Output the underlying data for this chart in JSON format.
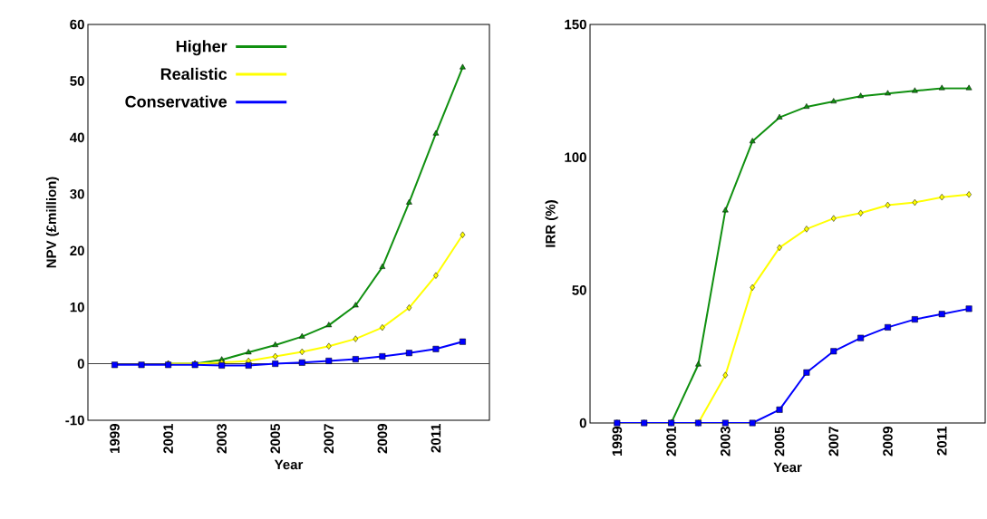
{
  "chart_data": [
    {
      "type": "line",
      "xlabel": "Year",
      "ylabel": "NPV (£million)",
      "x": [
        1999,
        2000,
        2001,
        2002,
        2003,
        2004,
        2005,
        2006,
        2007,
        2008,
        2009,
        2010,
        2011,
        2012
      ],
      "xlim": [
        1998,
        2013
      ],
      "ylim": [
        -10,
        60
      ],
      "xticks": [
        1999,
        2001,
        2003,
        2005,
        2007,
        2009,
        2011
      ],
      "yticks": [
        -10,
        0,
        10,
        20,
        30,
        40,
        50,
        60
      ],
      "legend": "top left",
      "ref_lines": [
        {
          "axis": "y",
          "value": 0,
          "color": "#404040"
        }
      ],
      "series": [
        {
          "name": "Higher",
          "color": "#109010",
          "marker": "triangle",
          "values": [
            null,
            null,
            0,
            0,
            0.7,
            2.0,
            3.3,
            4.8,
            6.8,
            10.3,
            17.1,
            28.5,
            40.7,
            52.4
          ]
        },
        {
          "name": "Realistic",
          "color": "#ffff00",
          "marker": "diamond",
          "values": [
            null,
            null,
            0,
            0,
            0.2,
            0.5,
            1.3,
            2.1,
            3.1,
            4.4,
            6.4,
            9.9,
            15.6,
            22.8
          ]
        },
        {
          "name": "Conservative",
          "color": "#0000ff",
          "marker": "square",
          "values": [
            -0.2,
            -0.2,
            -0.2,
            -0.2,
            -0.3,
            -0.3,
            0,
            0.2,
            0.5,
            0.8,
            1.3,
            1.9,
            2.6,
            3.9
          ]
        }
      ]
    },
    {
      "type": "line",
      "xlabel": "Year",
      "ylabel": "IRR (%)",
      "x": [
        1999,
        2000,
        2001,
        2002,
        2003,
        2004,
        2005,
        2006,
        2007,
        2008,
        2009,
        2010,
        2011,
        2012
      ],
      "xlim": [
        1998,
        2012.6
      ],
      "ylim": [
        0,
        150
      ],
      "xticks": [
        1999,
        2001,
        2003,
        2005,
        2007,
        2009,
        2011
      ],
      "yticks": [
        0,
        50,
        100,
        150
      ],
      "series": [
        {
          "color": "#109010",
          "marker": "triangle",
          "values": [
            0,
            0,
            0,
            22,
            80,
            106,
            115,
            119,
            121,
            123,
            124,
            125,
            126,
            126
          ]
        },
        {
          "color": "#ffff00",
          "marker": "diamond",
          "values": [
            null,
            null,
            0,
            0,
            18,
            51,
            66,
            73,
            77,
            79,
            82,
            83,
            85,
            86
          ]
        },
        {
          "color": "#0000ff",
          "marker": "square",
          "values": [
            0,
            0,
            0,
            0,
            0,
            0,
            5,
            19,
            27,
            32,
            36,
            39,
            41,
            43
          ]
        }
      ]
    }
  ]
}
